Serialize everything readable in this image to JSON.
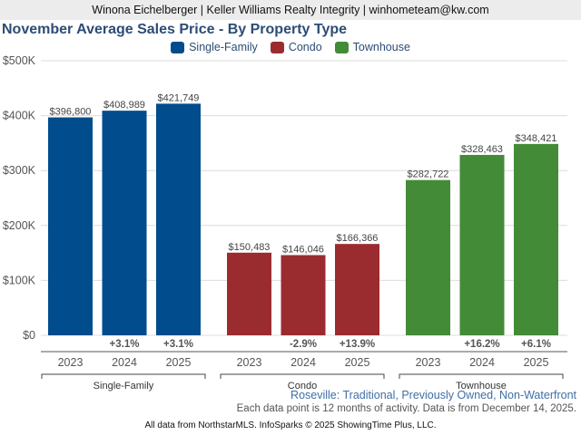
{
  "header": {
    "text": "Winona Eichelberger | Keller Williams Realty Integrity | winhometeam@kw.com"
  },
  "chart_data": {
    "type": "bar",
    "title": "November Average Sales Price - By Property Type",
    "xlabel": "",
    "ylabel": "",
    "ylim": [
      0,
      500000
    ],
    "yticks": [
      0,
      100000,
      200000,
      300000,
      400000,
      500000
    ],
    "ytick_labels": [
      "$0",
      "$100K",
      "$200K",
      "$300K",
      "$400K",
      "$500K"
    ],
    "grid": true,
    "legend_position": "top-center",
    "categories": [
      "2023",
      "2024",
      "2025"
    ],
    "series": [
      {
        "name": "Single-Family",
        "color": "#004c8c",
        "values": [
          396800,
          408989,
          421749
        ],
        "labels": [
          "$396,800",
          "$408,989",
          "$421,749"
        ],
        "changes": [
          "",
          "+3.1%",
          "+3.1%"
        ]
      },
      {
        "name": "Condo",
        "color": "#9a2c30",
        "values": [
          150483,
          146046,
          166366
        ],
        "labels": [
          "$150,483",
          "$146,046",
          "$166,366"
        ],
        "changes": [
          "",
          "-2.9%",
          "+13.9%"
        ]
      },
      {
        "name": "Townhouse",
        "color": "#438b37",
        "values": [
          282722,
          328463,
          348421
        ],
        "labels": [
          "$282,722",
          "$328,463",
          "$348,421"
        ],
        "changes": [
          "",
          "+16.2%",
          "+6.1%"
        ]
      }
    ]
  },
  "subtitle": "Roseville: Traditional, Previously Owned, Non-Waterfront",
  "note": "Each data point is 12 months of activity. Data is from December 14, 2025.",
  "footer": "All data from NorthstarMLS. InfoSparks © 2025 ShowingTime Plus, LLC."
}
